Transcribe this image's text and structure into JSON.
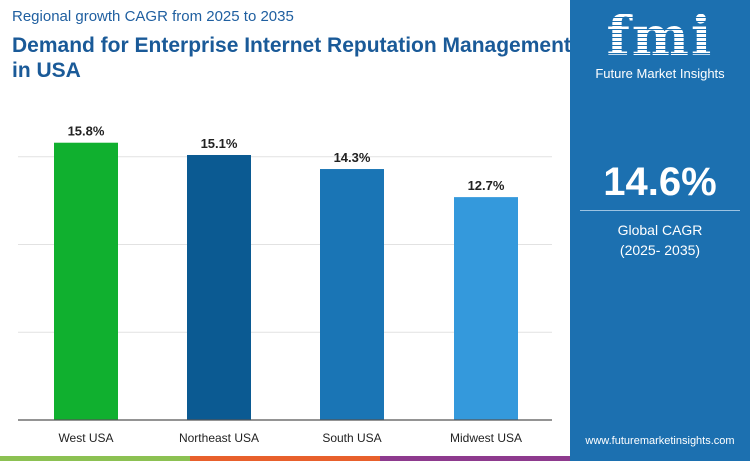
{
  "subtitle": "Regional growth CAGR from 2025 to 2035",
  "title": "Demand for Enterprise Internet Reputation Management in USA",
  "side": {
    "logo_text": "fmi",
    "brand": "Future Market Insights",
    "cagr": "14.6%",
    "cagr_label": "Global CAGR",
    "period": "(2025- 2035)",
    "url": "www.futuremarketinsights.com"
  },
  "colors": {
    "panel": "#1c70b0",
    "strip": [
      "#8cc152",
      "#e8602c",
      "#8e3a8e"
    ]
  },
  "chart_data": {
    "type": "bar",
    "categories": [
      "West USA",
      "Northeast USA",
      "South USA",
      "Midwest USA"
    ],
    "values": [
      15.8,
      15.1,
      14.3,
      12.7
    ],
    "labels": [
      "15.8%",
      "15.1%",
      "14.3%",
      "12.7%"
    ],
    "colors": [
      "#10b02f",
      "#0b5a92",
      "#1a75b5",
      "#3499dc"
    ],
    "ylim": [
      0,
      16
    ],
    "grid": true,
    "gridlines": [
      5,
      10,
      15
    ]
  }
}
